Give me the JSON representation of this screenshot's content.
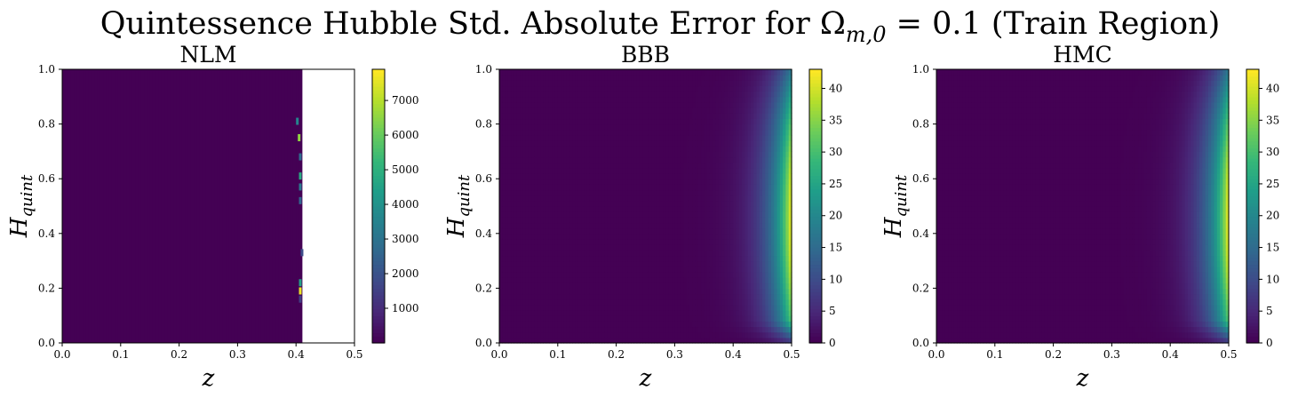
{
  "figure": {
    "title": "Quintessence Hubble Std. Absolute Error for Ω",
    "title_sub": "m,0",
    "title_rest": " = 0.1 (Train Region)"
  },
  "chart_data": [
    {
      "type": "heatmap",
      "title": "NLM",
      "xlabel": "z",
      "ylabel": "H",
      "ylabel_sub": "quint",
      "xlim": [
        0.0,
        0.5
      ],
      "ylim": [
        0.0,
        1.0
      ],
      "xticks": [
        "0.0",
        "0.1",
        "0.2",
        "0.3",
        "0.4",
        "0.5"
      ],
      "yticks": [
        "0.0",
        "0.2",
        "0.4",
        "0.6",
        "0.8",
        "1.0"
      ],
      "colormap": "viridis",
      "color_range": [
        0,
        7900
      ],
      "colorbar_ticks": [
        "1000",
        "2000",
        "3000",
        "4000",
        "5000",
        "6000",
        "7000"
      ],
      "colorbar_tick_values": [
        1000,
        2000,
        3000,
        4000,
        5000,
        6000,
        7000
      ],
      "field": "nlm",
      "no_data_region": {
        "z_min": 0.41,
        "z_max": 0.5,
        "color": "#ffffff"
      },
      "hotspots": [
        {
          "z": 0.4,
          "h": 0.81,
          "value": 3600
        },
        {
          "z": 0.403,
          "h": 0.75,
          "value": 6600
        },
        {
          "z": 0.405,
          "h": 0.68,
          "value": 2800
        },
        {
          "z": 0.405,
          "h": 0.61,
          "value": 4800
        },
        {
          "z": 0.405,
          "h": 0.57,
          "value": 3200
        },
        {
          "z": 0.405,
          "h": 0.52,
          "value": 2600
        },
        {
          "z": 0.408,
          "h": 0.33,
          "value": 1800
        },
        {
          "z": 0.405,
          "h": 0.22,
          "value": 4500
        },
        {
          "z": 0.405,
          "h": 0.19,
          "value": 7700
        },
        {
          "z": 0.405,
          "h": 0.16,
          "value": 1500
        }
      ]
    },
    {
      "type": "heatmap",
      "title": "BBB",
      "xlabel": "z",
      "ylabel": "H",
      "ylabel_sub": "quint",
      "xlim": [
        0.0,
        0.5
      ],
      "ylim": [
        0.0,
        1.0
      ],
      "xticks": [
        "0.0",
        "0.1",
        "0.2",
        "0.3",
        "0.4",
        "0.5"
      ],
      "yticks": [
        "0.0",
        "0.2",
        "0.4",
        "0.6",
        "0.8",
        "1.0"
      ],
      "colormap": "viridis",
      "color_range": [
        0,
        43
      ],
      "colorbar_ticks": [
        "0",
        "5",
        "10",
        "15",
        "20",
        "25",
        "30",
        "35",
        "40"
      ],
      "colorbar_tick_values": [
        0,
        5,
        10,
        15,
        20,
        25,
        30,
        35,
        40
      ],
      "field": "smooth",
      "peak": {
        "z": 0.5,
        "h": 0.45,
        "value": 43
      }
    },
    {
      "type": "heatmap",
      "title": "HMC",
      "xlabel": "z",
      "ylabel": "H",
      "ylabel_sub": "quint",
      "xlim": [
        0.0,
        0.5
      ],
      "ylim": [
        0.0,
        1.0
      ],
      "xticks": [
        "0.0",
        "0.1",
        "0.2",
        "0.3",
        "0.4",
        "0.5"
      ],
      "yticks": [
        "0.0",
        "0.2",
        "0.4",
        "0.6",
        "0.8",
        "1.0"
      ],
      "colormap": "viridis",
      "color_range": [
        0,
        43
      ],
      "colorbar_ticks": [
        "0",
        "5",
        "10",
        "15",
        "20",
        "25",
        "30",
        "35",
        "40"
      ],
      "colorbar_tick_values": [
        0,
        5,
        10,
        15,
        20,
        25,
        30,
        35,
        40
      ],
      "field": "smooth",
      "peak": {
        "z": 0.5,
        "h": 0.45,
        "value": 43
      }
    }
  ]
}
